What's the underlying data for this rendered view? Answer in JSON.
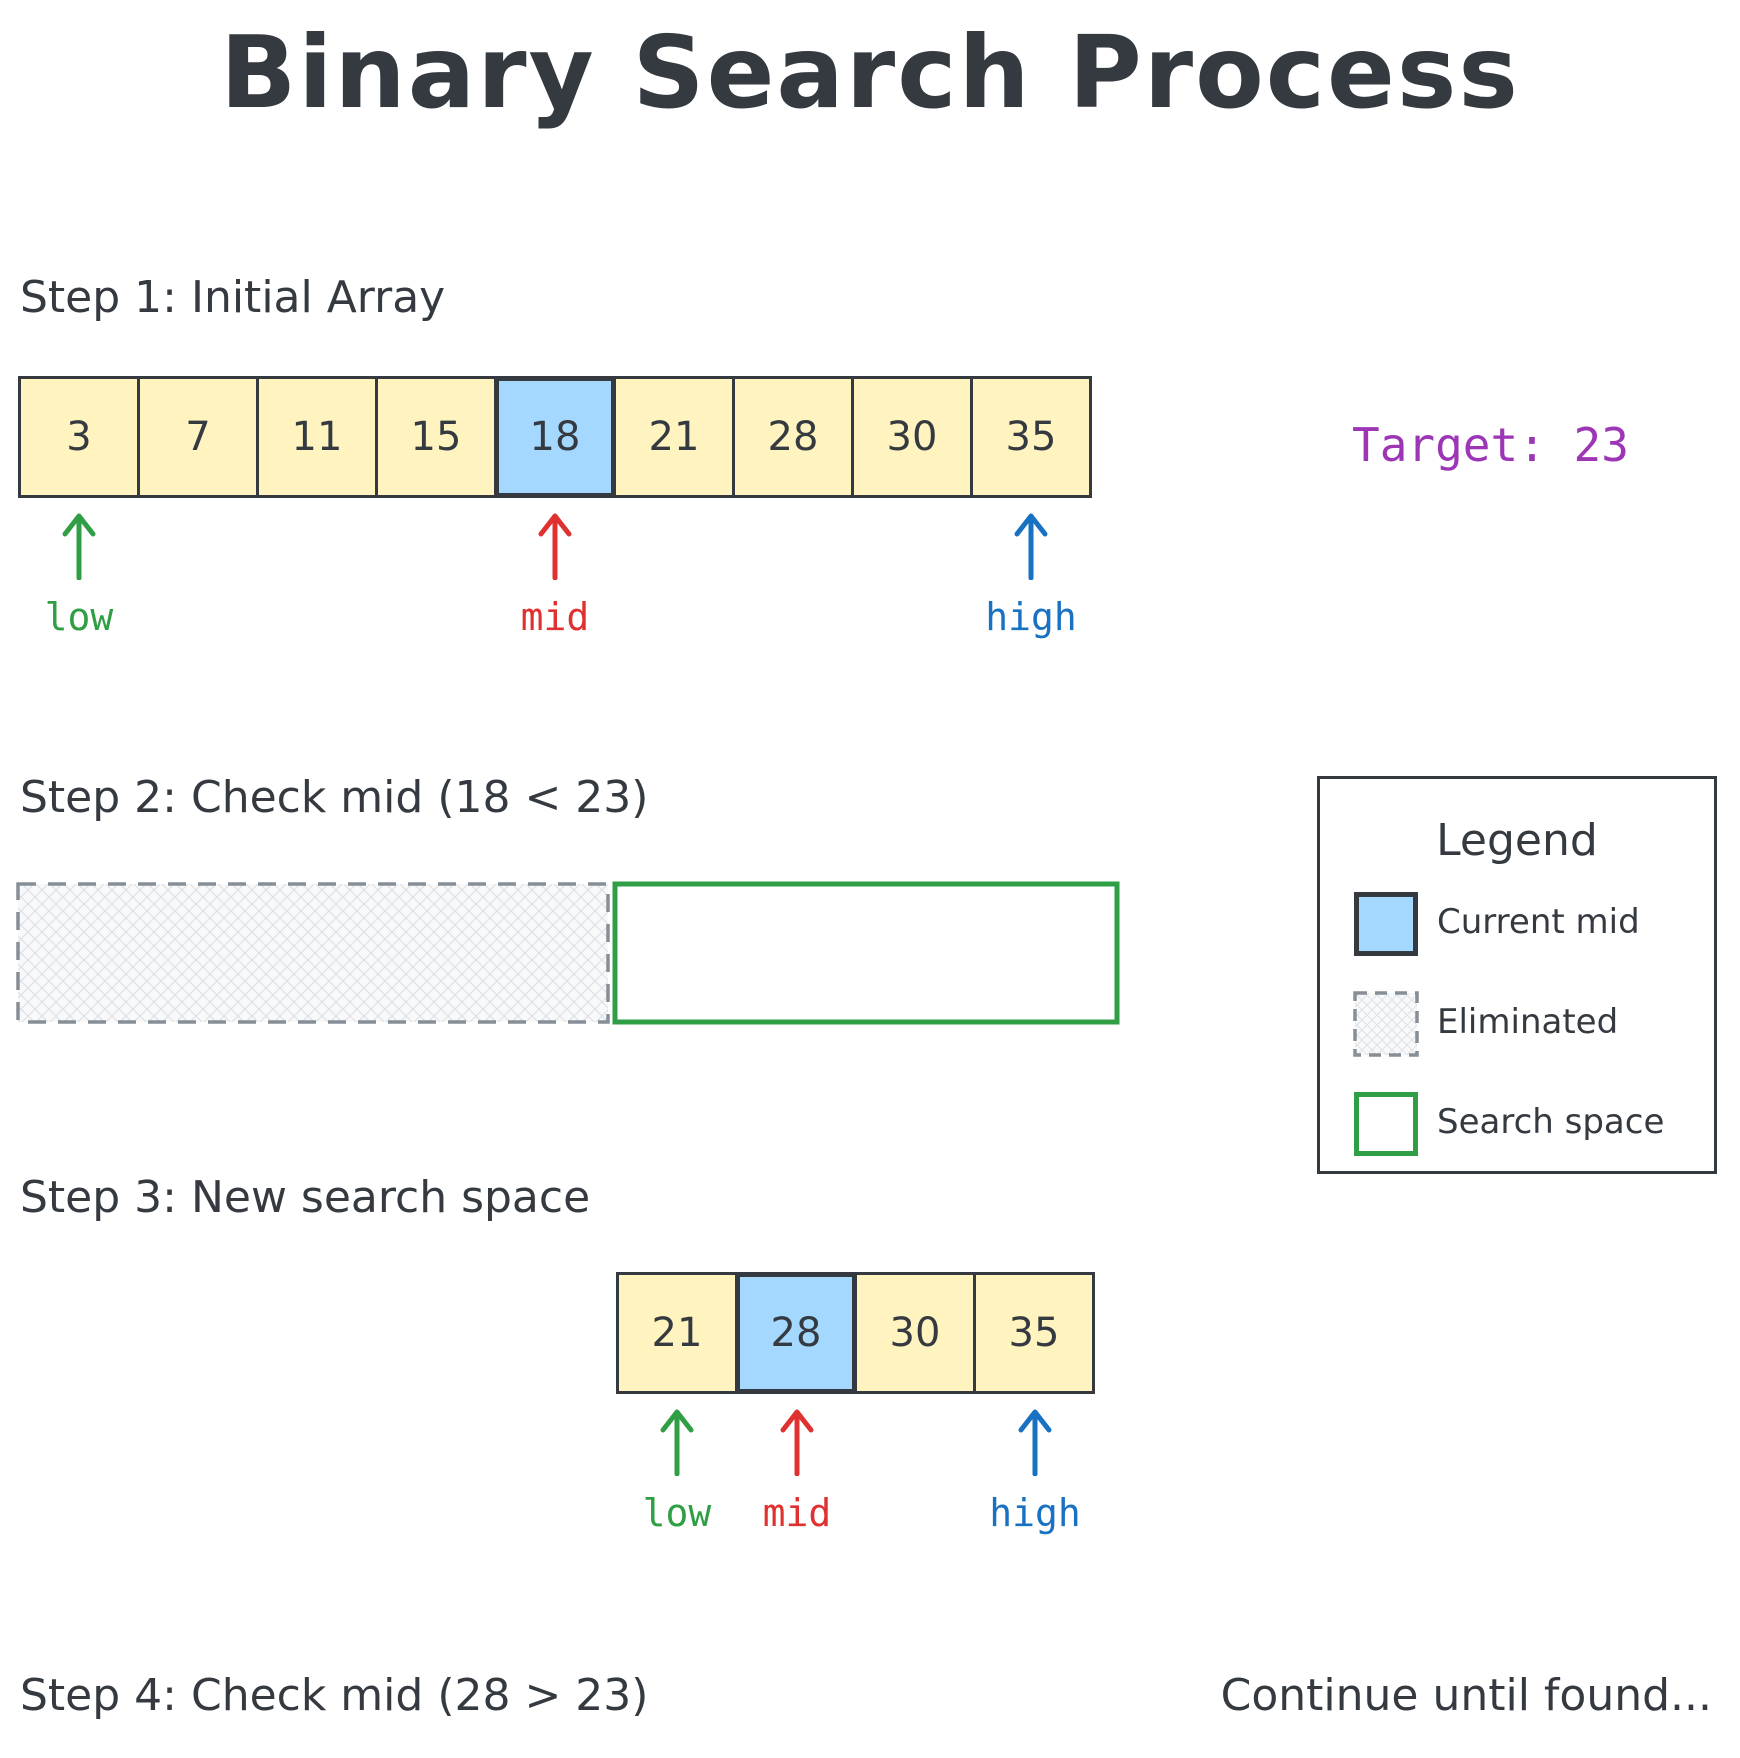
{
  "title": "Binary Search Process",
  "colors": {
    "cell_fill": "#fff3bf",
    "mid_fill": "#a5d8ff",
    "outline": "#343a40",
    "low": "#2f9e44",
    "mid": "#e03131",
    "high": "#1971c2",
    "target": "#9c36b5",
    "eliminated": "#868e96",
    "search_space": "#2f9e44"
  },
  "step1": {
    "label": "Step 1: Initial Array",
    "cells": [
      "3",
      "7",
      "11",
      "15",
      "18",
      "21",
      "28",
      "30",
      "35"
    ],
    "mid_index": 4,
    "pointers": {
      "low": "low",
      "mid": "mid",
      "high": "high"
    }
  },
  "target_text": "Target: 23",
  "step2": {
    "label": "Step 2: Check mid (18 < 23)"
  },
  "step3": {
    "label": "Step 3: New search space",
    "cells": [
      "21",
      "28",
      "30",
      "35"
    ],
    "mid_index": 1,
    "pointers": {
      "low": "low",
      "mid": "mid",
      "high": "high"
    }
  },
  "step4": {
    "label": "Step 4: Check mid (28 > 23)"
  },
  "footer": "Continue until found...",
  "legend": {
    "title": "Legend",
    "items": [
      {
        "label": "Current mid",
        "icon": "current-mid-swatch"
      },
      {
        "label": "Eliminated",
        "icon": "eliminated-swatch"
      },
      {
        "label": "Search space",
        "icon": "search-space-swatch"
      }
    ]
  }
}
